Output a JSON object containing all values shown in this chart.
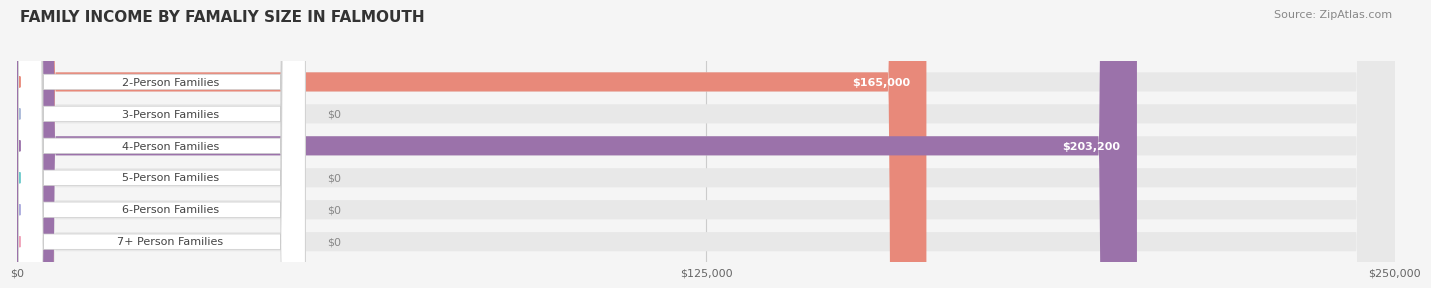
{
  "title": "FAMILY INCOME BY FAMALIY SIZE IN FALMOUTH",
  "source": "Source: ZipAtlas.com",
  "categories": [
    "2-Person Families",
    "3-Person Families",
    "4-Person Families",
    "5-Person Families",
    "6-Person Families",
    "7+ Person Families"
  ],
  "values": [
    165000,
    0,
    203200,
    0,
    0,
    0
  ],
  "bar_colors": [
    "#E8897A",
    "#A8B8D8",
    "#9B72AA",
    "#6DCACC",
    "#AAAADD",
    "#F0A0B8"
  ],
  "value_labels": [
    "$165,000",
    "$0",
    "$203,200",
    "$0",
    "$0",
    "$0"
  ],
  "xlim": [
    0,
    250000
  ],
  "xticks": [
    0,
    125000,
    250000
  ],
  "xtick_labels": [
    "$0",
    "$125,000",
    "$250,000"
  ],
  "bg_color": "#F5F5F5",
  "bar_bg_color": "#E8E8E8",
  "title_fontsize": 11,
  "source_fontsize": 8,
  "label_fontsize": 8,
  "value_fontsize": 8
}
